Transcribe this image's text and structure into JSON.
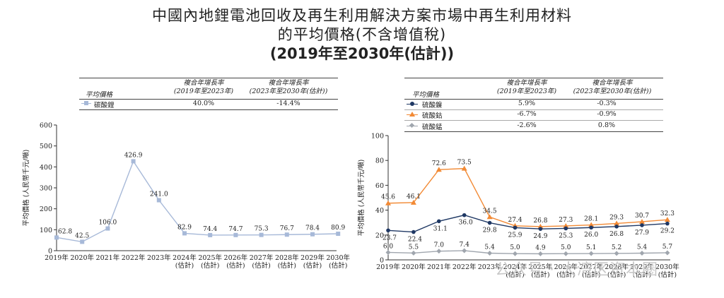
{
  "title": {
    "line1": "中國內地鋰電池回收及再生利用解決方案市場中再生利用材料",
    "line2": "的平均價格(不含增值稅)",
    "line3": "(2019年至2030年(估計))"
  },
  "watermark": "公众号 · 大湾区资本圈",
  "tables": {
    "left": {
      "col0": "平均價格",
      "col1": [
        "複合年增長率",
        "(2019年至2023年)"
      ],
      "col2": [
        "複合年增長率",
        "(2023年至2030年(估計))"
      ],
      "rows": [
        {
          "name": "碳酸鋰",
          "c1": "40.0%",
          "c2": "-14.4%"
        }
      ]
    },
    "right": {
      "col0": "平均價格",
      "col1": [
        "複合年增長率",
        "(2019年至2023年)"
      ],
      "col2": [
        "複合年增長率",
        "(2023年至2030年(估計))"
      ],
      "rows": [
        {
          "name": "硫酸鎳",
          "c1": "5.9%",
          "c2": "-0.3%"
        },
        {
          "name": "硫酸鈷",
          "c1": "-6.7%",
          "c2": "-0.9%"
        },
        {
          "name": "硫酸錳",
          "c1": "-2.6%",
          "c2": "0.8%"
        }
      ]
    }
  },
  "chart_data": [
    {
      "type": "line",
      "ylabel": "平均價格 (人民幣千元/噸)",
      "ylim": [
        0,
        600
      ],
      "yticks": [
        0,
        100,
        200,
        300,
        400,
        500,
        600
      ],
      "categories": [
        [
          "2019年"
        ],
        [
          "2020年"
        ],
        [
          "2021年"
        ],
        [
          "2022年"
        ],
        [
          "2023年"
        ],
        [
          "2024年",
          "(估計)"
        ],
        [
          "2025年",
          "(估計)"
        ],
        [
          "2026年",
          "(估計)"
        ],
        [
          "2027年",
          "(估計)"
        ],
        [
          "2028年",
          "(估計)"
        ],
        [
          "2029年",
          "(估計)"
        ],
        [
          "2030年",
          "(估計)"
        ]
      ],
      "series": [
        {
          "name": "碳酸鋰",
          "color": "#a7b9d8",
          "marker": "square",
          "values": [
            62.8,
            42.5,
            106.0,
            426.9,
            241.0,
            82.9,
            74.4,
            74.7,
            75.3,
            76.7,
            78.4,
            80.9
          ],
          "labels": [
            "62.8",
            "42.5",
            "106.0",
            "426.9",
            "241.0",
            "82.9",
            "74.4",
            "74.7",
            "75.3",
            "76.7",
            "78.4",
            "80.9"
          ]
        }
      ]
    },
    {
      "type": "line",
      "ylabel": "平均價格 (人民幣千元/噸)",
      "ylim": [
        0,
        100
      ],
      "yticks": [
        0,
        20,
        40,
        60,
        80,
        100
      ],
      "categories": [
        [
          "2019年"
        ],
        [
          "2020年"
        ],
        [
          "2021年"
        ],
        [
          "2022年"
        ],
        [
          "2023年"
        ],
        [
          "2024年",
          "(估計)"
        ],
        [
          "2025年",
          "(估計)"
        ],
        [
          "2026年",
          "(估計)"
        ],
        [
          "2027年",
          "(估計)"
        ],
        [
          "2028年",
          "(估計)"
        ],
        [
          "2029年",
          "(估計)"
        ],
        [
          "2030年",
          "(估計)"
        ]
      ],
      "series": [
        {
          "name": "硫酸鈷",
          "color": "#f28a35",
          "marker": "triangle",
          "values": [
            45.6,
            46.1,
            72.6,
            73.5,
            34.5,
            27.4,
            26.8,
            27.3,
            28.1,
            29.3,
            30.7,
            32.3
          ],
          "labels": [
            "45.6",
            "46.1",
            "72.6",
            "73.5",
            "34.5",
            "27.4",
            "26.8",
            "27.3",
            "28.1",
            "29.3",
            "30.7",
            "32.3"
          ]
        },
        {
          "name": "硫酸鎳",
          "color": "#1f3864",
          "marker": "circle",
          "values": [
            23.7,
            22.4,
            31.1,
            36.0,
            29.8,
            25.9,
            24.9,
            25.3,
            26.0,
            26.8,
            27.9,
            29.2
          ],
          "labels": [
            "23.7",
            "22.4",
            "31.1",
            "36.0",
            "29.8",
            "25.9",
            "24.9",
            "25.3",
            "26.0",
            "26.8",
            "27.9",
            "29.2"
          ]
        },
        {
          "name": "硫酸錳",
          "color": "#a0a6ae",
          "marker": "diamond",
          "values": [
            6.0,
            5.5,
            7.0,
            7.4,
            5.4,
            5.0,
            4.9,
            5.0,
            5.1,
            5.2,
            5.4,
            5.7
          ],
          "labels": [
            "6.0",
            "5.5",
            "7.0",
            "7.4",
            "5.4",
            "5.0",
            "4.9",
            "5.0",
            "5.1",
            "5.2",
            "5.4",
            "5.7"
          ]
        }
      ]
    }
  ]
}
